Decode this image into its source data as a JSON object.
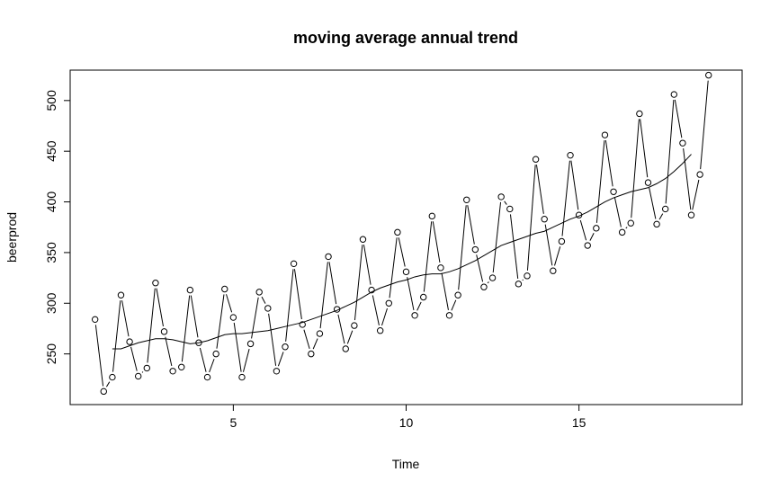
{
  "chart_data": {
    "type": "line",
    "title": "moving average annual trend",
    "xlabel": "Time",
    "ylabel": "beerprod",
    "xlim": [
      0.28,
      19.72
    ],
    "ylim": [
      200,
      530
    ],
    "x_ticks": [
      5,
      10,
      15
    ],
    "y_ticks": [
      250,
      300,
      350,
      400,
      450,
      500
    ],
    "grid": false,
    "legend": "none",
    "series": [
      {
        "style": "points-and-lines",
        "x": [
          1.0,
          1.25,
          1.5,
          1.75,
          2.0,
          2.25,
          2.5,
          2.75,
          3.0,
          3.25,
          3.5,
          3.75,
          4.0,
          4.25,
          4.5,
          4.75,
          5.0,
          5.25,
          5.5,
          5.75,
          6.0,
          6.25,
          6.5,
          6.75,
          7.0,
          7.25,
          7.5,
          7.75,
          8.0,
          8.25,
          8.5,
          8.75,
          9.0,
          9.25,
          9.5,
          9.75,
          10.0,
          10.25,
          10.5,
          10.75,
          11.0,
          11.25,
          11.5,
          11.75,
          12.0,
          12.25,
          12.5,
          12.75,
          13.0,
          13.25,
          13.5,
          13.75,
          14.0,
          14.25,
          14.5,
          14.75,
          15.0,
          15.25,
          15.5,
          15.75,
          16.0,
          16.25,
          16.5,
          16.75,
          17.0,
          17.25,
          17.5,
          17.75,
          18.0,
          18.25,
          18.5,
          18.75
        ],
        "values": [
          284,
          213,
          227,
          308,
          262,
          228,
          236,
          320,
          272,
          233,
          237,
          313,
          261,
          227,
          250,
          314,
          286,
          227,
          260,
          311,
          295,
          233,
          257,
          339,
          279,
          250,
          270,
          346,
          294,
          255,
          278,
          363,
          313,
          273,
          300,
          370,
          331,
          288,
          306,
          386,
          335,
          288,
          308,
          402,
          353,
          316,
          325,
          405,
          393,
          319,
          327,
          442,
          383,
          332,
          361,
          446,
          387,
          357,
          374,
          466,
          410,
          370,
          379,
          487,
          419,
          378,
          393,
          506,
          458,
          387,
          427,
          525
        ]
      },
      {
        "style": "line",
        "x": [
          1.5,
          1.75,
          2.0,
          2.25,
          2.5,
          2.75,
          3.0,
          3.25,
          3.5,
          3.75,
          4.0,
          4.25,
          4.5,
          4.75,
          5.0,
          5.25,
          5.5,
          5.75,
          6.0,
          6.25,
          6.5,
          6.75,
          7.0,
          7.25,
          7.5,
          7.75,
          8.0,
          8.25,
          8.5,
          8.75,
          9.0,
          9.25,
          9.5,
          9.75,
          10.0,
          10.25,
          10.5,
          10.75,
          11.0,
          11.25,
          11.5,
          11.75,
          12.0,
          12.25,
          12.5,
          12.75,
          13.0,
          13.25,
          13.5,
          13.75,
          14.0,
          14.25,
          14.5,
          14.75,
          15.0,
          15.25,
          15.5,
          15.75,
          16.0,
          16.25,
          16.5,
          16.75,
          17.0,
          17.25,
          17.5,
          17.75,
          18.0,
          18.25
        ],
        "values": [
          255,
          255,
          258,
          261,
          263,
          265,
          265,
          264,
          262,
          260,
          261,
          263,
          266,
          269,
          270,
          270,
          271,
          272,
          273,
          275,
          277,
          279,
          281,
          284,
          287,
          290,
          293,
          297,
          301,
          306,
          311,
          315,
          318,
          321,
          323,
          326,
          328,
          329,
          329,
          331,
          334,
          338,
          342,
          347,
          352,
          357,
          360,
          363,
          366,
          369,
          371,
          375,
          379,
          383,
          386,
          390,
          395,
          400,
          404,
          407,
          410,
          412,
          414,
          418,
          423,
          430,
          438,
          447
        ]
      }
    ]
  }
}
